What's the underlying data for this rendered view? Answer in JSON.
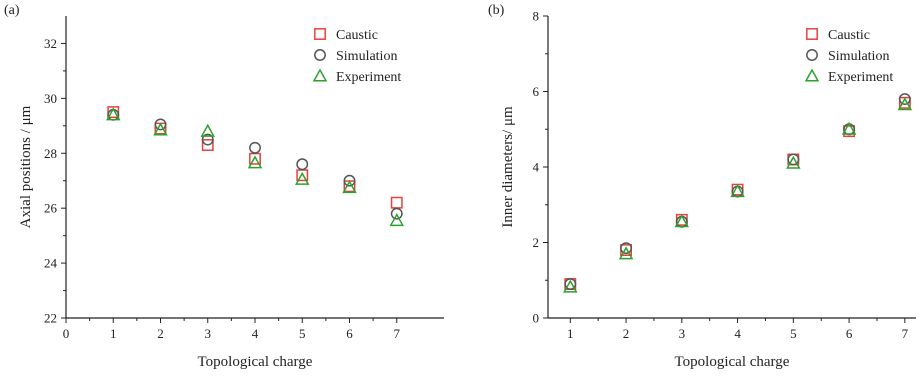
{
  "chart_data": [
    {
      "type": "scatter",
      "panel_label": "(a)",
      "title": "",
      "xlabel": "Topological charge",
      "ylabel": "Axial positions / μm",
      "xlim": [
        0,
        8
      ],
      "ylim": [
        22,
        33
      ],
      "xticks": [
        0,
        1,
        2,
        3,
        4,
        5,
        6,
        7
      ],
      "yticks": [
        22,
        24,
        26,
        28,
        30,
        32
      ],
      "x": [
        1,
        2,
        3,
        4,
        5,
        6,
        7
      ],
      "grid": false,
      "legend_position": "top-right",
      "series": [
        {
          "name": "Caustic",
          "marker": "square",
          "color": "#e8413c",
          "values": [
            29.5,
            28.9,
            28.3,
            27.8,
            27.2,
            26.8,
            26.2
          ]
        },
        {
          "name": "Simulation",
          "marker": "circle",
          "color": "#555555",
          "values": [
            29.4,
            29.05,
            28.5,
            28.2,
            27.6,
            27.0,
            25.8
          ]
        },
        {
          "name": "Experiment",
          "marker": "triangle",
          "color": "#2ca02c",
          "values": [
            29.4,
            28.85,
            28.8,
            27.65,
            27.05,
            26.75,
            25.55
          ]
        }
      ]
    },
    {
      "type": "scatter",
      "panel_label": "(b)",
      "title": "",
      "xlabel": "Topological charge",
      "ylabel": "Inner diameters/ μm",
      "xlim": [
        0.6,
        7.2
      ],
      "ylim": [
        0,
        8
      ],
      "xticks": [
        1,
        2,
        3,
        4,
        5,
        6,
        7
      ],
      "yticks": [
        0,
        2,
        4,
        6,
        8
      ],
      "x": [
        1,
        2,
        3,
        4,
        5,
        6,
        7
      ],
      "grid": false,
      "legend_position": "top-right",
      "series": [
        {
          "name": "Caustic",
          "marker": "square",
          "color": "#e8413c",
          "values": [
            0.9,
            1.8,
            2.6,
            3.4,
            4.2,
            4.95,
            5.7
          ]
        },
        {
          "name": "Simulation",
          "marker": "circle",
          "color": "#555555",
          "values": [
            0.9,
            1.85,
            2.55,
            3.35,
            4.2,
            5.0,
            5.8
          ]
        },
        {
          "name": "Experiment",
          "marker": "triangle",
          "color": "#2ca02c",
          "values": [
            0.82,
            1.7,
            2.55,
            3.35,
            4.1,
            5.0,
            5.65
          ]
        }
      ]
    }
  ]
}
